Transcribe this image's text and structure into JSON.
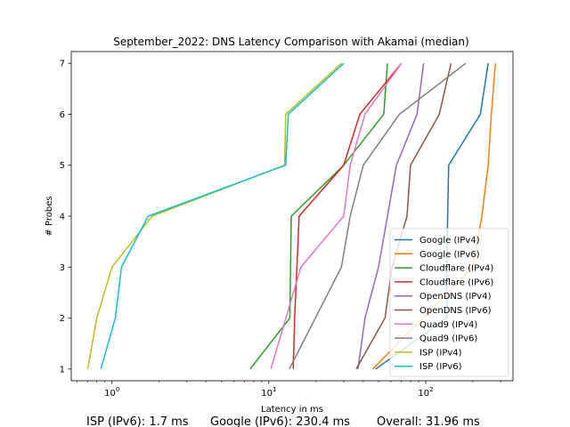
{
  "chart_data": {
    "type": "line",
    "title": "September_2022: DNS Latency Comparison with Akamai (median)",
    "xlabel": "Latency in ms",
    "ylabel": "# Probes",
    "xscale": "log",
    "xlim": [
      0.55,
      360
    ],
    "ylim": [
      0.77,
      7.23
    ],
    "x_ticks": [
      {
        "value": 1,
        "base": "10",
        "exp": "0"
      },
      {
        "value": 10,
        "base": "10",
        "exp": "1"
      },
      {
        "value": 100,
        "base": "10",
        "exp": "2"
      }
    ],
    "y_ticks": [
      "1",
      "2",
      "3",
      "4",
      "5",
      "6",
      "7"
    ],
    "legend_position": "lower right",
    "series": [
      {
        "name": "Google (IPv4)",
        "color": "#1f77b4",
        "x": [
          48,
          136,
          136,
          140,
          223,
          250
        ],
        "y": [
          1,
          2,
          3,
          5,
          6,
          7
        ]
      },
      {
        "name": "Google (IPv6)",
        "color": "#ff7f0e",
        "x": [
          46,
          200,
          228,
          250,
          262,
          278
        ],
        "y": [
          1,
          3,
          4,
          5,
          6,
          7
        ]
      },
      {
        "name": "Cloudflare (IPv4)",
        "color": "#2ca02c",
        "x": [
          7.6,
          13.6,
          13.9,
          30,
          54,
          57
        ],
        "y": [
          1,
          2,
          4,
          5,
          6,
          7
        ]
      },
      {
        "name": "Cloudflare (IPv6)",
        "color": "#d62728",
        "x": [
          14.3,
          14.6,
          15.6,
          30,
          38,
          70
        ],
        "y": [
          1,
          2,
          4,
          5,
          6,
          7
        ]
      },
      {
        "name": "OpenDNS (IPv4)",
        "color": "#9467bd",
        "x": [
          37,
          41,
          50,
          65,
          88,
          97
        ],
        "y": [
          1,
          2,
          3,
          5,
          6,
          7
        ]
      },
      {
        "name": "OpenDNS (IPv6)",
        "color": "#8c564b",
        "x": [
          36,
          55,
          61,
          76,
          80,
          122,
          145
        ],
        "y": [
          1,
          2,
          3,
          4,
          5,
          6,
          7
        ]
      },
      {
        "name": "Quad9 (IPv4)",
        "color": "#e377c2",
        "x": [
          10.3,
          16,
          30,
          33,
          41,
          70
        ],
        "y": [
          1,
          3,
          4,
          5,
          6,
          7
        ]
      },
      {
        "name": "Quad9 (IPv6)",
        "color": "#7f7f7f",
        "x": [
          13.5,
          29,
          33,
          40,
          68,
          180
        ],
        "y": [
          1,
          3,
          4,
          5,
          6,
          7
        ]
      },
      {
        "name": "ISP (IPv4)",
        "color": "#bcbd22",
        "x": [
          0.7,
          0.8,
          1.0,
          1.8,
          12.6,
          12.8,
          29
        ],
        "y": [
          1,
          2,
          3,
          4,
          5,
          6,
          7
        ]
      },
      {
        "name": "ISP (IPv6)",
        "color": "#17becf",
        "x": [
          0.85,
          1.05,
          1.15,
          1.7,
          12.8,
          13.3,
          30
        ],
        "y": [
          1,
          2,
          3,
          4,
          5,
          6,
          7
        ]
      }
    ]
  },
  "footer": {
    "isp": "ISP (IPv6): 1.7 ms",
    "google": "Google (IPv6): 230.4 ms",
    "overall": "Overall: 31.96 ms"
  }
}
